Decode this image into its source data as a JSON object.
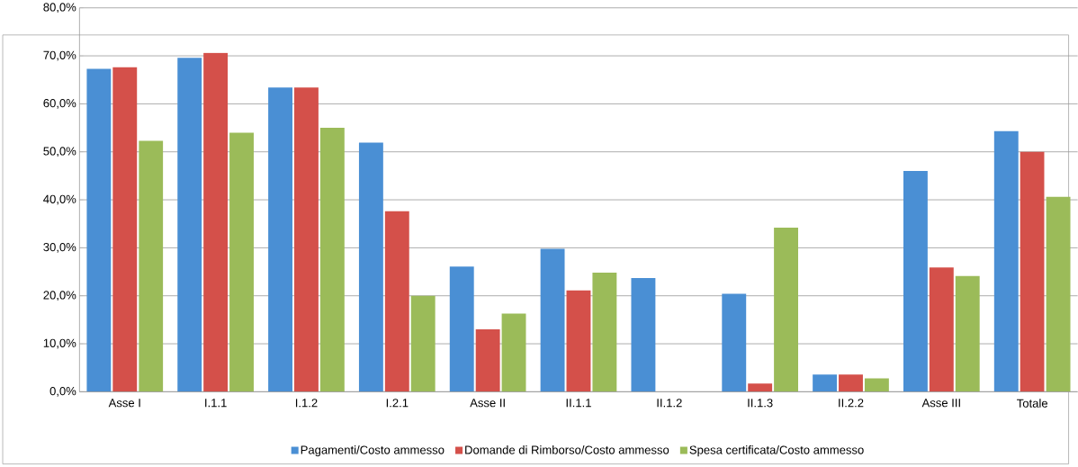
{
  "chart_data": {
    "type": "bar",
    "categories": [
      "Asse I",
      "I.1.1",
      "I.1.2",
      "I.2.1",
      "Asse II",
      "II.1.1",
      "II.1.2",
      "II.1.3",
      "II.2.2",
      "Asse III",
      "Totale"
    ],
    "series": [
      {
        "name": "Pagamenti/Costo ammesso",
        "color": "#4a8fd4",
        "values": [
          67.3,
          69.6,
          63.4,
          51.9,
          26.1,
          29.8,
          23.7,
          20.4,
          3.6,
          46.0,
          54.3
        ]
      },
      {
        "name": "Domande di Rimborso/Costo ammesso",
        "color": "#d4504a",
        "values": [
          67.6,
          70.6,
          63.4,
          37.6,
          13.0,
          21.1,
          null,
          1.7,
          3.6,
          25.9,
          50.0
        ]
      },
      {
        "name": "Spesa certificata/Costo ammesso",
        "color": "#9bbb59",
        "values": [
          52.3,
          54.0,
          55.0,
          20.0,
          16.3,
          24.8,
          null,
          34.2,
          2.8,
          24.1,
          40.6
        ]
      }
    ],
    "ylim": [
      0,
      80
    ],
    "yticks": [
      {
        "value": 0,
        "label": "0,0%"
      },
      {
        "value": 10,
        "label": "10,0%"
      },
      {
        "value": 20,
        "label": "20,0%"
      },
      {
        "value": 30,
        "label": "30,0%"
      },
      {
        "value": 40,
        "label": "40,0%"
      },
      {
        "value": 50,
        "label": "50,0%"
      },
      {
        "value": 60,
        "label": "60,0%"
      },
      {
        "value": 70,
        "label": "70,0%"
      },
      {
        "value": 80,
        "label": "80,0%"
      }
    ],
    "grid": "y",
    "legend": "bottom"
  }
}
